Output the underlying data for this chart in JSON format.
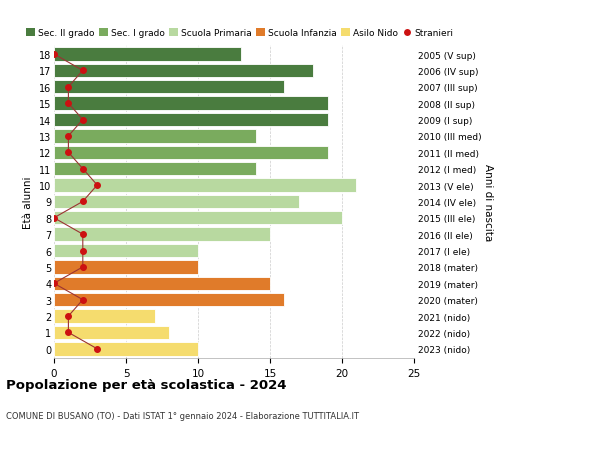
{
  "ages": [
    18,
    17,
    16,
    15,
    14,
    13,
    12,
    11,
    10,
    9,
    8,
    7,
    6,
    5,
    4,
    3,
    2,
    1,
    0
  ],
  "bar_values": [
    13,
    18,
    16,
    19,
    19,
    14,
    19,
    14,
    21,
    17,
    20,
    15,
    10,
    10,
    15,
    16,
    7,
    8,
    10
  ],
  "bar_colors": [
    "#4a7c3f",
    "#4a7c3f",
    "#4a7c3f",
    "#4a7c3f",
    "#4a7c3f",
    "#7aab5e",
    "#7aab5e",
    "#7aab5e",
    "#b8d9a0",
    "#b8d9a0",
    "#b8d9a0",
    "#b8d9a0",
    "#b8d9a0",
    "#e07b2a",
    "#e07b2a",
    "#e07b2a",
    "#f5dc6e",
    "#f5dc6e",
    "#f5dc6e"
  ],
  "stranieri_values": [
    0,
    2,
    1,
    1,
    2,
    1,
    1,
    2,
    3,
    2,
    0,
    2,
    2,
    2,
    0,
    2,
    1,
    1,
    3
  ],
  "right_labels": [
    "2005 (V sup)",
    "2006 (IV sup)",
    "2007 (III sup)",
    "2008 (II sup)",
    "2009 (I sup)",
    "2010 (III med)",
    "2011 (II med)",
    "2012 (I med)",
    "2013 (V ele)",
    "2014 (IV ele)",
    "2015 (III ele)",
    "2016 (II ele)",
    "2017 (I ele)",
    "2018 (mater)",
    "2019 (mater)",
    "2020 (mater)",
    "2021 (nido)",
    "2022 (nido)",
    "2023 (nido)"
  ],
  "legend_labels": [
    "Sec. II grado",
    "Sec. I grado",
    "Scuola Primaria",
    "Scuola Infanzia",
    "Asilo Nido",
    "Stranieri"
  ],
  "legend_colors": [
    "#4a7c3f",
    "#7aab5e",
    "#b8d9a0",
    "#e07b2a",
    "#f5dc6e",
    "#cc1111"
  ],
  "ylabel_left": "Età alunni",
  "ylabel_right": "Anni di nascita",
  "title": "Popolazione per età scolastica - 2024",
  "subtitle": "COMUNE DI BUSANO (TO) - Dati ISTAT 1° gennaio 2024 - Elaborazione TUTTITALIA.IT",
  "xlim": [
    0,
    25
  ],
  "xticks": [
    0,
    5,
    10,
    15,
    20,
    25
  ],
  "stranieri_color": "#cc1111",
  "stranieri_line_color": "#9b3333",
  "bar_height": 0.82,
  "background_color": "#ffffff",
  "grid_color": "#cccccc"
}
